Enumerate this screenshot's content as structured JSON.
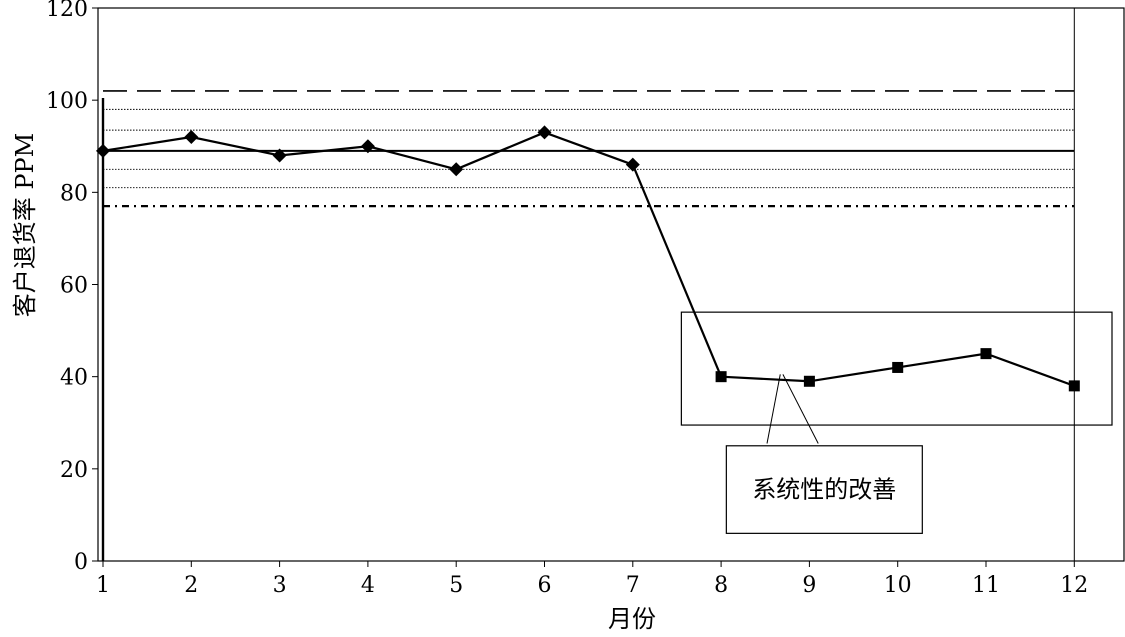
{
  "chart_data": {
    "type": "line",
    "xlabel": "月份",
    "ylabel": "客户退货率 PPM",
    "ylim": [
      0,
      120
    ],
    "y_ticks": [
      "0",
      "20",
      "40",
      "60",
      "80",
      "100",
      "120"
    ],
    "x_ticks": [
      "1",
      "2",
      "3",
      "4",
      "5",
      "6",
      "7",
      "8",
      "9",
      "10",
      "11",
      "12"
    ],
    "grid": false,
    "series": [
      {
        "marker": "diamond",
        "color": "#000000",
        "points": [
          [
            1,
            89
          ],
          [
            2,
            92
          ],
          [
            3,
            88
          ],
          [
            4,
            90
          ],
          [
            5,
            85
          ],
          [
            6,
            93
          ],
          [
            7,
            86
          ]
        ]
      },
      {
        "marker": "square",
        "color": "#000000",
        "points": [
          [
            8,
            40
          ],
          [
            9,
            39
          ],
          [
            10,
            42
          ],
          [
            11,
            45
          ],
          [
            12,
            38
          ]
        ]
      }
    ],
    "connector": [
      [
        7,
        86
      ],
      [
        8,
        40
      ]
    ],
    "reference_lines": [
      {
        "y": 102,
        "style": "long-dash"
      },
      {
        "y": 98,
        "style": "dotted"
      },
      {
        "y": 93.5,
        "style": "dotted"
      },
      {
        "y": 89,
        "style": "solid"
      },
      {
        "y": 85,
        "style": "dotted"
      },
      {
        "y": 81,
        "style": "dotted"
      },
      {
        "y": 77,
        "style": "dash-dot"
      }
    ],
    "reference_line_x_range": [
      1,
      12
    ],
    "annotation": {
      "text": "系统性的改善",
      "box_x_range": [
        7.55,
        13.5
      ],
      "box_y_range": [
        29.5,
        54
      ],
      "label_x_range": [
        8.15,
        9.35
      ],
      "label_y_range": [
        6,
        25
      ],
      "pointer_targets": [
        [
          8.67,
          40.5
        ],
        [
          8.7,
          40.5
        ]
      ],
      "pointer_bases": [
        [
          8.52,
          25.5
        ],
        [
          9.1,
          25.5
        ]
      ]
    }
  }
}
